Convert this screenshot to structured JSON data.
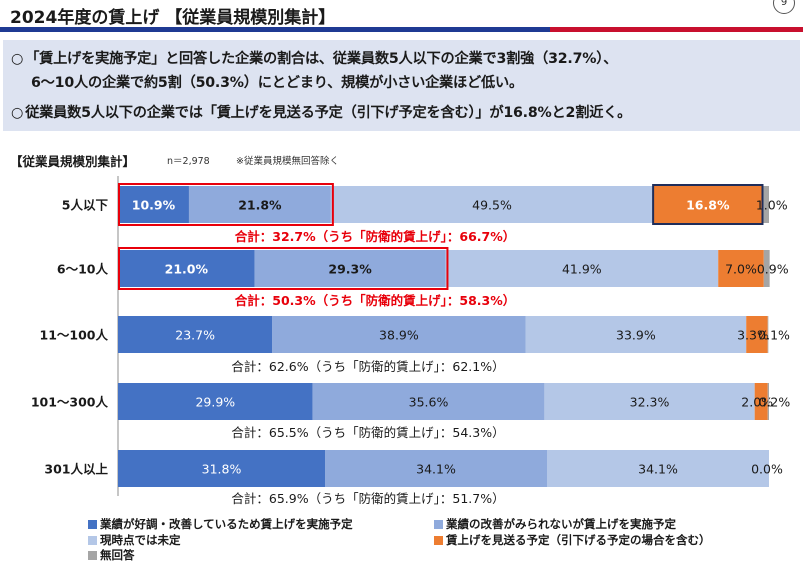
{
  "title": "2024年度の賃上げ 【従業員規模別集計】",
  "page_marker": "9",
  "summary": {
    "line1": "「賃上げを実施予定」と回答した企業の割合は、従業員数5人以下の企業で3割強（32.7%）、",
    "line2": "6〜10人の企業で約5割（50.3%）にとどまり、規模が小さい企業ほど低い。",
    "line3": "従業員数5人以下の企業では「賃上げを見送る予定（引下げ予定を含む）」が16.8%と2割近く。",
    "bullet": "○"
  },
  "section_header": "【従業員規模別集計】",
  "sample_note": "n＝2,978",
  "exclusion_note": "※従業員規模無回答除く",
  "colors": {
    "series1": "#4472c4",
    "series2": "#8faadc",
    "series3": "#b4c7e7",
    "series4": "#ed7d31",
    "series5": "#a5a5a5",
    "highlight": "#e8000b",
    "highlight_box": "#1f2d5a"
  },
  "chart_data": {
    "type": "bar",
    "orientation": "horizontal",
    "stacked": true,
    "categories": [
      "5人以下",
      "6〜10人",
      "11〜100人",
      "101〜300人",
      "301人以上"
    ],
    "series": [
      {
        "name": "業績が好調・改善しているため賃上げを実施予定",
        "values": [
          10.9,
          21.0,
          23.7,
          29.9,
          31.8
        ],
        "labels": [
          "10.9%",
          "21.0%",
          "23.7%",
          "29.9%",
          "31.8%"
        ]
      },
      {
        "name": "業績の改善がみられないが賃上げを実施予定",
        "values": [
          21.8,
          29.3,
          38.9,
          35.6,
          34.1
        ],
        "labels": [
          "21.8%",
          "29.3%",
          "38.9%",
          "35.6%",
          "34.1%"
        ]
      },
      {
        "name": "現時点では未定",
        "values": [
          49.5,
          41.9,
          33.9,
          32.3,
          34.1
        ],
        "labels": [
          "49.5%",
          "41.9%",
          "33.9%",
          "32.3%",
          "34.1%"
        ]
      },
      {
        "name": "賃上げを見送る予定（引下げる予定の場合を含む）",
        "values": [
          16.8,
          7.0,
          3.3,
          2.0,
          0.0
        ],
        "labels": [
          "16.8%",
          "7.0%",
          "3.3%",
          "2.0%",
          ""
        ]
      },
      {
        "name": "無回答",
        "values": [
          1.0,
          0.9,
          0.1,
          0.2,
          0.0
        ],
        "labels": [
          "1.0%",
          "0.9%",
          "0.1%",
          "0.2%",
          "0.0%"
        ]
      }
    ],
    "totals": [
      "合計：32.7%（うち「防衛的賃上げ」：66.7%）",
      "合計：50.3%（うち「防衛的賃上げ」：58.3%）",
      "合計：62.6%（うち「防衛的賃上げ」：62.1%）",
      "合計：65.5%（うち「防衛的賃上げ」：54.3%）",
      "合計：65.9%（うち「防衛的賃上げ」：51.7%）"
    ],
    "highlighted_totals": [
      true,
      true,
      false,
      false,
      false
    ],
    "xlim": [
      0,
      100
    ],
    "legend_position": "bottom"
  }
}
